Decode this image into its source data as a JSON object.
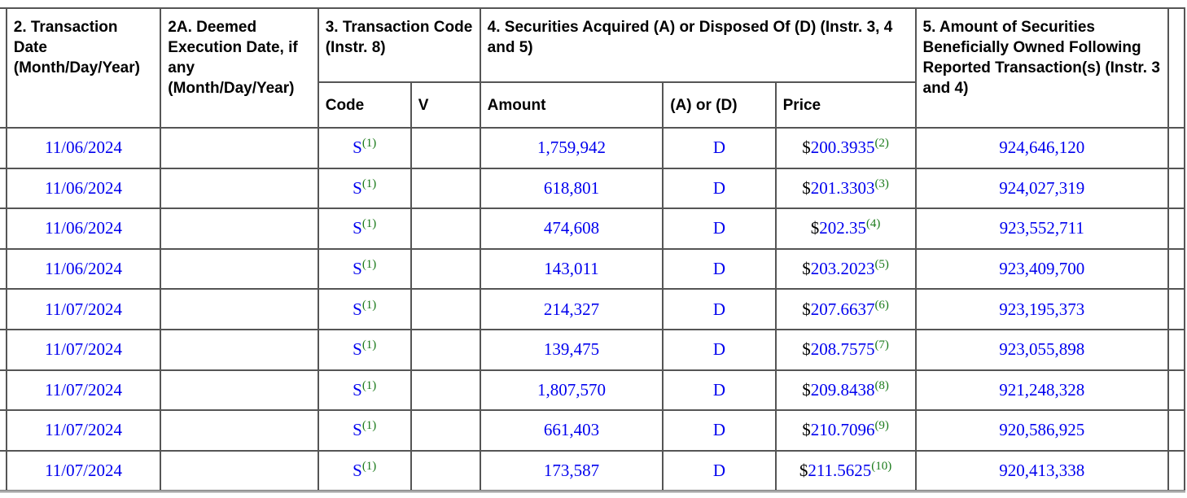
{
  "headers": {
    "transaction_date": "2. Transaction Date (Month/Day/Year)",
    "deemed_execution_date": "2A. Deemed Execution Date, if any (Month/Day/Year)",
    "transaction_code": "3. Transaction Code (Instr. 8)",
    "securities_acquired_disposed": "4. Securities Acquired (A) or Disposed Of (D) (Instr. 3, 4 and 5)",
    "amount_owned": "5. Amount of Securities Beneficially Owned Following Reported Transaction(s) (Instr. 3 and 4)",
    "code": "Code",
    "v": "V",
    "amount": "Amount",
    "a_or_d": "(A) or (D)",
    "price": "Price"
  },
  "currency_symbol": "$",
  "rows": [
    {
      "date": "11/06/2024",
      "code": "S",
      "code_fn": "(1)",
      "amount": "1,759,942",
      "ad": "D",
      "price": "200.3935",
      "price_fn": "(2)",
      "owned": "924,646,120"
    },
    {
      "date": "11/06/2024",
      "code": "S",
      "code_fn": "(1)",
      "amount": "618,801",
      "ad": "D",
      "price": "201.3303",
      "price_fn": "(3)",
      "owned": "924,027,319"
    },
    {
      "date": "11/06/2024",
      "code": "S",
      "code_fn": "(1)",
      "amount": "474,608",
      "ad": "D",
      "price": "202.35",
      "price_fn": "(4)",
      "owned": "923,552,711"
    },
    {
      "date": "11/06/2024",
      "code": "S",
      "code_fn": "(1)",
      "amount": "143,011",
      "ad": "D",
      "price": "203.2023",
      "price_fn": "(5)",
      "owned": "923,409,700"
    },
    {
      "date": "11/07/2024",
      "code": "S",
      "code_fn": "(1)",
      "amount": "214,327",
      "ad": "D",
      "price": "207.6637",
      "price_fn": "(6)",
      "owned": "923,195,373"
    },
    {
      "date": "11/07/2024",
      "code": "S",
      "code_fn": "(1)",
      "amount": "139,475",
      "ad": "D",
      "price": "208.7575",
      "price_fn": "(7)",
      "owned": "923,055,898"
    },
    {
      "date": "11/07/2024",
      "code": "S",
      "code_fn": "(1)",
      "amount": "1,807,570",
      "ad": "D",
      "price": "209.8438",
      "price_fn": "(8)",
      "owned": "921,248,328"
    },
    {
      "date": "11/07/2024",
      "code": "S",
      "code_fn": "(1)",
      "amount": "661,403",
      "ad": "D",
      "price": "210.7096",
      "price_fn": "(9)",
      "owned": "920,586,925"
    },
    {
      "date": "11/07/2024",
      "code": "S",
      "code_fn": "(1)",
      "amount": "173,587",
      "ad": "D",
      "price": "211.5625",
      "price_fn": "(10)",
      "owned": "920,413,338"
    }
  ],
  "colors": {
    "value": "#0000ee",
    "footnote": "#1a7a1a",
    "border": "#555555"
  }
}
